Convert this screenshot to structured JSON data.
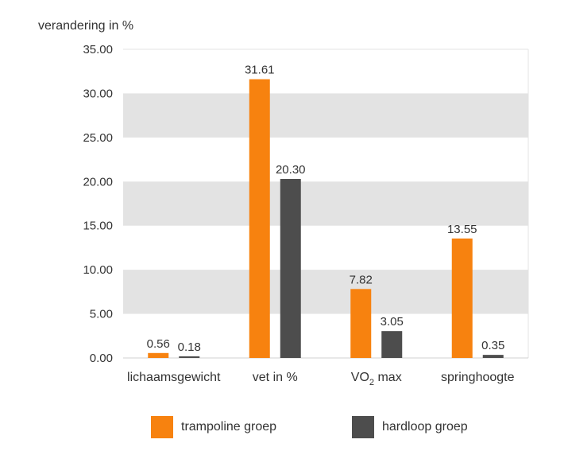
{
  "chart_data": {
    "type": "bar",
    "ylabel": "verandering in %",
    "categories": [
      {
        "label": "lichaamsgewicht"
      },
      {
        "label": "vet in %"
      },
      {
        "label": "VO",
        "sub": "2",
        "suffix": " max"
      },
      {
        "label": "springhoogte"
      }
    ],
    "series": [
      {
        "name": "trampoline groep",
        "color": "#f7820f",
        "values": [
          0.56,
          31.61,
          7.82,
          13.55
        ]
      },
      {
        "name": "hardloop groep",
        "color": "#4d4d4d",
        "values": [
          0.18,
          20.3,
          3.05,
          0.35
        ]
      }
    ],
    "value_labels": [
      [
        "0.56",
        "31.61",
        "7.82",
        "13.55"
      ],
      [
        "0.18",
        "20.30",
        "3.05",
        "0.35"
      ]
    ],
    "ylim": [
      0,
      35
    ],
    "yticks": [
      "0.00",
      "5.00",
      "10.00",
      "15.00",
      "20.00",
      "25.00",
      "30.00",
      "35.00"
    ],
    "band_color": "#e3e3e3",
    "grid": "alternating horizontal bands",
    "legend_position": "bottom"
  }
}
